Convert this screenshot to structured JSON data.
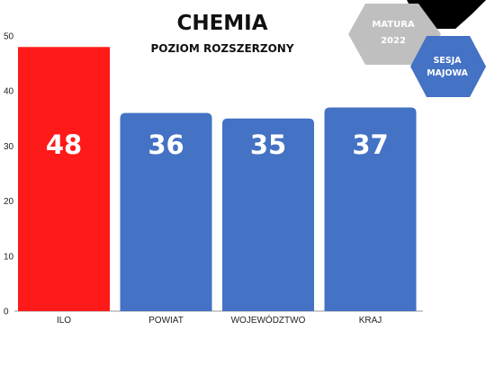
{
  "header": {
    "title": "CHEMIA",
    "subtitle": "POZIOM ROZSZERZONY"
  },
  "badges": {
    "matura_line1": "MATURA",
    "matura_line2": "2022",
    "sesja_line1": "SESJA",
    "sesja_line2": "MAJOWA"
  },
  "colors": {
    "highlight": "#ff1a1a",
    "bar": "#4472c4",
    "badge_grey": "#bfbfbf",
    "badge_blue": "#4472c4",
    "badge_black": "#000000"
  },
  "chart_data": {
    "type": "bar",
    "title": "CHEMIA",
    "subtitle": "POZIOM ROZSZERZONY",
    "categories": [
      "ILO",
      "POWIAT",
      "WOJEWÓDZTWO",
      "KRAJ"
    ],
    "values": [
      48,
      36,
      35,
      37
    ],
    "data_labels": [
      "48",
      "36",
      "35",
      "37"
    ],
    "yticks": [
      0,
      10,
      20,
      30,
      40,
      50
    ],
    "ylim": [
      0,
      50
    ],
    "xlabel": "",
    "ylabel": "",
    "grid": false,
    "bar_colors": [
      "#ff1a1a",
      "#4472c4",
      "#4472c4",
      "#4472c4"
    ]
  }
}
